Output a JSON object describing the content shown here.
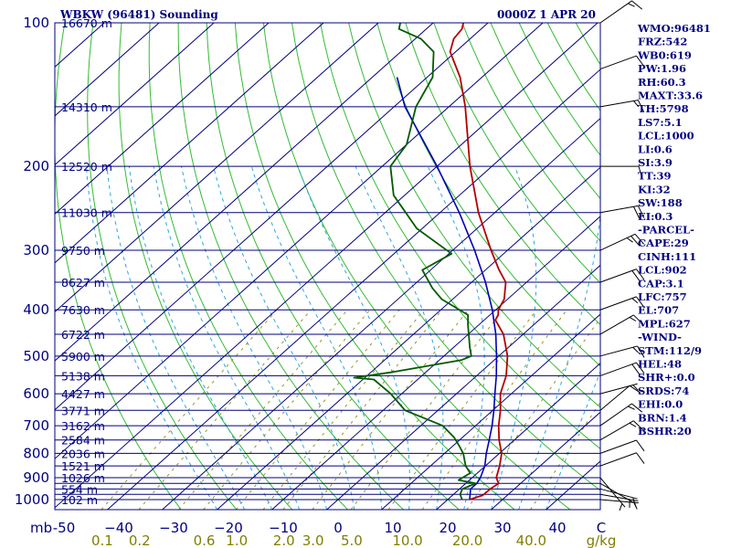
{
  "header": {
    "title": "WBKW (96481) Sounding",
    "time": "0000Z  1 APR 20"
  },
  "chart_data": {
    "type": "line",
    "pressure_levels": [
      100,
      150,
      200,
      250,
      300,
      350,
      400,
      450,
      500,
      550,
      600,
      650,
      700,
      750,
      800,
      850,
      900,
      925,
      950,
      975,
      1000
    ],
    "pressure_labels": [
      {
        "p": 100,
        "text": "100"
      },
      {
        "p": 200,
        "text": "200"
      },
      {
        "p": 300,
        "text": "300"
      },
      {
        "p": 400,
        "text": "400"
      },
      {
        "p": 500,
        "text": "500"
      },
      {
        "p": 600,
        "text": "600"
      },
      {
        "p": 700,
        "text": "700"
      },
      {
        "p": 800,
        "text": "800"
      },
      {
        "p": 900,
        "text": "900"
      },
      {
        "p": 1000,
        "text": "1000"
      }
    ],
    "heights": [
      {
        "p": 100,
        "text": "16670 m"
      },
      {
        "p": 150,
        "text": "14310 m"
      },
      {
        "p": 200,
        "text": "12520 m"
      },
      {
        "p": 250,
        "text": "11030 m"
      },
      {
        "p": 300,
        "text": "9750 m"
      },
      {
        "p": 350,
        "text": "8627 m"
      },
      {
        "p": 400,
        "text": "7630 m"
      },
      {
        "p": 450,
        "text": "6722 m"
      },
      {
        "p": 500,
        "text": "5900 m"
      },
      {
        "p": 550,
        "text": "5138 m"
      },
      {
        "p": 600,
        "text": "4427 m"
      },
      {
        "p": 650,
        "text": "3771 m"
      },
      {
        "p": 700,
        "text": "3162 m"
      },
      {
        "p": 750,
        "text": "2584 m"
      },
      {
        "p": 800,
        "text": "2036 m"
      },
      {
        "p": 850,
        "text": "1521 m"
      },
      {
        "p": 900,
        "text": "1026 m"
      },
      {
        "p": 950,
        "text": "554 m"
      },
      {
        "p": 1000,
        "text": "102 m"
      }
    ],
    "temp_axis": {
      "label": "mb",
      "values": [
        -50,
        -40,
        -30,
        -20,
        -10,
        0,
        10,
        20,
        30,
        40
      ],
      "labels": [
        "-50",
        "−40",
        "−30",
        "−20",
        "−10",
        "0",
        "10",
        "20",
        "30",
        "40"
      ],
      "unit": "C"
    },
    "mixing_ratio_axis": {
      "values": [
        0.1,
        0.2,
        0.6,
        1.0,
        2.0,
        3.0,
        5.0,
        10.0,
        20.0,
        40.0
      ],
      "labels": [
        "0.1",
        "0.2",
        "0.6",
        "1.0",
        "2.0",
        "3.0",
        "5.0",
        "10.0",
        "20.0",
        "40.0"
      ],
      "unit": "g/kg"
    },
    "temperature": {
      "color": "#b30000",
      "points": [
        [
          1000,
          24.0
        ],
        [
          980,
          25.5
        ],
        [
          950,
          25.6
        ],
        [
          925,
          26.0
        ],
        [
          900,
          24.4
        ],
        [
          850,
          22.6
        ],
        [
          800,
          20.4
        ],
        [
          750,
          17.2
        ],
        [
          700,
          14.2
        ],
        [
          650,
          11.4
        ],
        [
          600,
          8.0
        ],
        [
          550,
          5.4
        ],
        [
          500,
          1.6
        ],
        [
          450,
          -3.6
        ],
        [
          420,
          -8.0
        ],
        [
          410,
          -8.5
        ],
        [
          400,
          -9.5
        ],
        [
          380,
          -10.6
        ],
        [
          350,
          -13.8
        ],
        [
          330,
          -17.5
        ],
        [
          300,
          -23.0
        ],
        [
          250,
          -33.0
        ],
        [
          200,
          -44.0
        ],
        [
          150,
          -57.0
        ],
        [
          130,
          -64.0
        ],
        [
          115,
          -71.0
        ],
        [
          108,
          -73.0
        ],
        [
          103,
          -73.5
        ],
        [
          100,
          -74.5
        ]
      ]
    },
    "dewpoint": {
      "color": "#005a00",
      "points": [
        [
          1000,
          22.6
        ],
        [
          975,
          21.2
        ],
        [
          950,
          20.5
        ],
        [
          925,
          21.8
        ],
        [
          910,
          18.0
        ],
        [
          880,
          18.7
        ],
        [
          850,
          16.4
        ],
        [
          800,
          13.4
        ],
        [
          770,
          11.0
        ],
        [
          740,
          8.4
        ],
        [
          700,
          4.0
        ],
        [
          650,
          -6.0
        ],
        [
          600,
          -12.0
        ],
        [
          560,
          -18.0
        ],
        [
          555,
          -22.0
        ],
        [
          540,
          -16.0
        ],
        [
          510,
          -6.0
        ],
        [
          500,
          -5.0
        ],
        [
          480,
          -7.0
        ],
        [
          430,
          -12.0
        ],
        [
          410,
          -14.0
        ],
        [
          380,
          -22.0
        ],
        [
          360,
          -26.0
        ],
        [
          330,
          -31.5
        ],
        [
          305,
          -29.5
        ],
        [
          270,
          -41.0
        ],
        [
          230,
          -52.0
        ],
        [
          200,
          -58.5
        ],
        [
          180,
          -60.0
        ],
        [
          150,
          -66.0
        ],
        [
          130,
          -69.0
        ],
        [
          115,
          -74.0
        ],
        [
          108,
          -79.0
        ],
        [
          103,
          -85.0
        ],
        [
          100,
          -86.0
        ]
      ]
    },
    "parcel": {
      "color": "#0000b3",
      "points": [
        [
          1000,
          24.0
        ],
        [
          950,
          22.0
        ],
        [
          925,
          22.0
        ],
        [
          900,
          21.5
        ],
        [
          850,
          19.9
        ],
        [
          800,
          17.6
        ],
        [
          750,
          15.4
        ],
        [
          700,
          13.0
        ],
        [
          650,
          10.2
        ],
        [
          600,
          7.0
        ],
        [
          550,
          3.6
        ],
        [
          500,
          -0.4
        ],
        [
          450,
          -5.0
        ],
        [
          400,
          -10.6
        ],
        [
          350,
          -17.5
        ],
        [
          300,
          -26.0
        ],
        [
          250,
          -36.5
        ],
        [
          200,
          -50.0
        ],
        [
          150,
          -68.0
        ],
        [
          130,
          -75.5
        ]
      ]
    },
    "wind_barbs": [
      {
        "p": 1000,
        "dir": 95,
        "kt": 5
      },
      {
        "p": 975,
        "dir": 100,
        "kt": 5
      },
      {
        "p": 950,
        "dir": 105,
        "kt": 5
      },
      {
        "p": 925,
        "dir": 120,
        "kt": 5
      },
      {
        "p": 900,
        "dir": 140,
        "kt": 5
      },
      {
        "p": 850,
        "dir": 70,
        "kt": 10
      },
      {
        "p": 800,
        "dir": 70,
        "kt": 10
      },
      {
        "p": 750,
        "dir": 60,
        "kt": 15
      },
      {
        "p": 700,
        "dir": 55,
        "kt": 15
      },
      {
        "p": 650,
        "dir": 50,
        "kt": 10
      },
      {
        "p": 600,
        "dir": 75,
        "kt": 5
      },
      {
        "p": 550,
        "dir": 70,
        "kt": 20
      },
      {
        "p": 500,
        "dir": 75,
        "kt": 15
      },
      {
        "p": 450,
        "dir": 60,
        "kt": 15
      },
      {
        "p": 400,
        "dir": 70,
        "kt": 15
      },
      {
        "p": 350,
        "dir": 70,
        "kt": 20
      },
      {
        "p": 300,
        "dir": 65,
        "kt": 25
      },
      {
        "p": 250,
        "dir": 80,
        "kt": 20
      },
      {
        "p": 200,
        "dir": 90,
        "kt": 10
      },
      {
        "p": 150,
        "dir": 80,
        "kt": 15
      },
      {
        "p": 125,
        "dir": 70,
        "kt": 10
      },
      {
        "p": 100,
        "dir": 55,
        "kt": 15
      }
    ],
    "grid": true
  },
  "indices": [
    "WMO:96481",
    "FRZ:542",
    "WB0:619",
    "PW:1.96",
    "RH:60.3",
    "MAXT:33.6",
    "TH:5798",
    "LS7:5.1",
    "LCL:1000",
    "LI:0.6",
    "SI:3.9",
    "TT:39",
    "KI:32",
    "SW:188",
    "EI:0.3",
    "-PARCEL-",
    "CAPE:29",
    "CINH:111",
    "LCL:902",
    "CAP:3.1",
    "LFC:757",
    "EL:707",
    "MPL:627",
    "-WIND-",
    "STM:112/9",
    "HEL:48",
    "SHR+:0.0",
    "SRDS:74",
    "EHI:0.0",
    "BRN:1.4",
    "BSHR:20"
  ],
  "colors": {
    "isobar": "#00007f",
    "dry_adiabat": "#33bb33",
    "mixing_ratio": "#8b8b10",
    "moist_adiabat": "#2aa8dd",
    "text": "#00007f"
  }
}
